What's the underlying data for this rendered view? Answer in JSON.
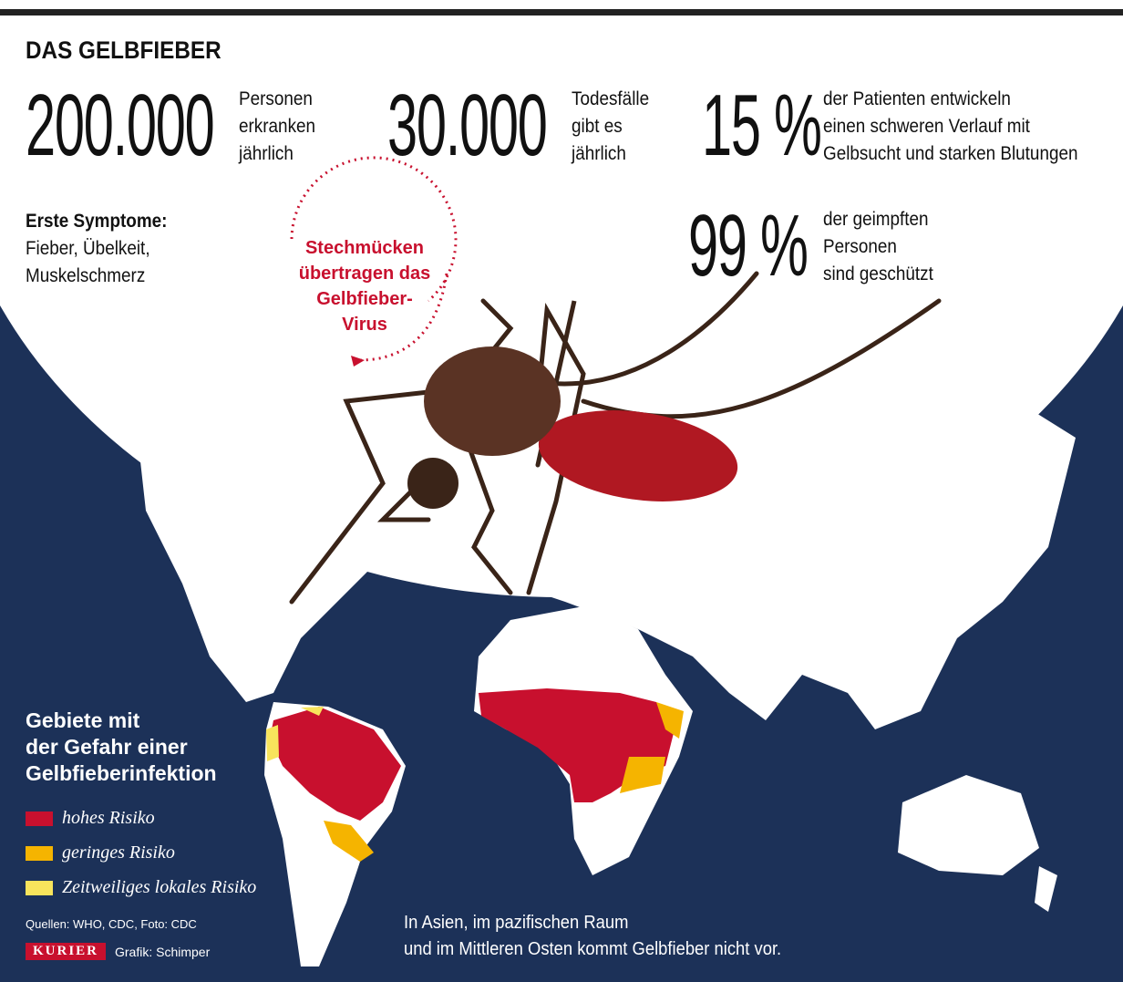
{
  "header": {
    "title": "DAS GELBFIEBER"
  },
  "stats": [
    {
      "number": "200.000",
      "lines": [
        "Personen",
        "erkranken",
        "jährlich"
      ]
    },
    {
      "number": "30.000",
      "lines": [
        "Todesfälle",
        "gibt es",
        "jährlich"
      ]
    },
    {
      "number": "15 %",
      "lines": [
        "der Patienten entwickeln",
        "einen schweren Verlauf mit",
        "Gelbsucht und starken Blutungen"
      ]
    },
    {
      "number": "99 %",
      "lines": [
        "der geimpften",
        "Personen",
        "sind geschützt"
      ]
    }
  ],
  "symptoms": {
    "title": "Erste Symptome:",
    "lines": [
      "Fieber, Übelkeit,",
      "Muskelschmerz"
    ]
  },
  "annotation": {
    "lines": [
      "Stechmücken",
      "übertragen das",
      "Gelbfieber-",
      "Virus"
    ]
  },
  "legend": {
    "title": [
      "Gebiete mit",
      "der Gefahr einer",
      "Gelbfieberinfektion"
    ],
    "items": [
      {
        "label": "hohes Risiko",
        "color": "#c8102e"
      },
      {
        "label": "geringes Risiko",
        "color": "#f5b400"
      },
      {
        "label": "Zeitweiliges lokales Risiko",
        "color": "#f8e45c"
      }
    ]
  },
  "note": [
    "In Asien, im pazifischen Raum",
    "und im Mittleren Osten kommt Gelbfieber nicht vor."
  ],
  "footer": {
    "sources": "Quellen: WHO, CDC, Foto: CDC",
    "brand": "KURIER",
    "credit": "Grafik: Schimper"
  }
}
